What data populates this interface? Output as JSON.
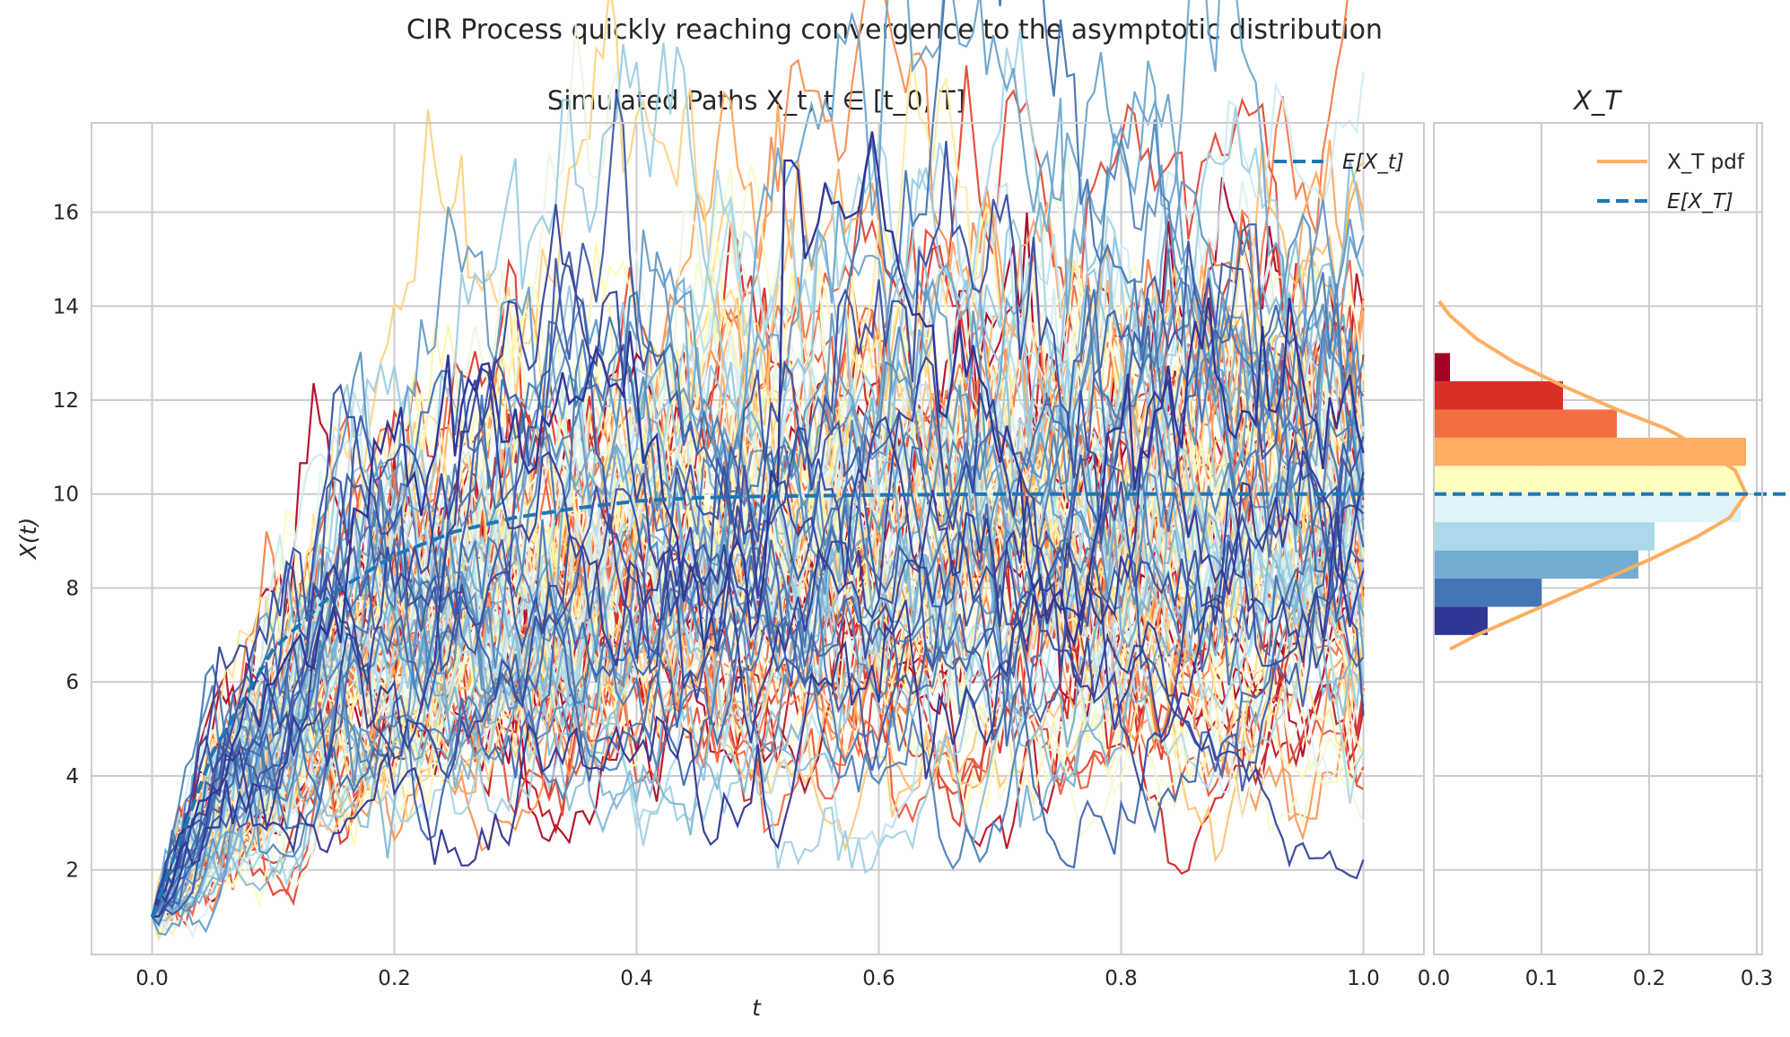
{
  "figure": {
    "suptitle": "CIR Process quickly reaching convergence to the asymptotic distribution"
  },
  "chart_data": [
    {
      "type": "line",
      "title": "Simulated Paths X_t, t ∈ [t_0, T]",
      "xlabel": "t",
      "ylabel": "X(t)",
      "xlim": [
        -0.05,
        1.05
      ],
      "ylim": [
        0.2,
        17.9
      ],
      "xticks": [
        "0.0",
        "0.2",
        "0.4",
        "0.6",
        "0.8",
        "1.0"
      ],
      "yticks": [
        "2",
        "4",
        "6",
        "8",
        "10",
        "12",
        "14",
        "16"
      ],
      "grid": true,
      "legend_position": "top-right",
      "process": {
        "x0": 1.0,
        "long_run_mean": 10.0,
        "t_start": 0.0,
        "t_end": 1.0
      },
      "series": [
        {
          "name": "E[X_t]",
          "style": "dashed",
          "color": "#1f77b4",
          "x": [
            0.0,
            0.05,
            0.1,
            0.15,
            0.2,
            0.25,
            0.3,
            0.35,
            0.4,
            0.45,
            0.5,
            0.6,
            0.7,
            0.8,
            0.9,
            1.0
          ],
          "values": [
            1.0,
            4.5,
            6.7,
            7.9,
            8.7,
            9.2,
            9.5,
            9.7,
            9.85,
            9.92,
            9.95,
            9.98,
            10.0,
            10.0,
            10.0,
            10.0
          ]
        }
      ],
      "annotations": "≈100 simulated sample paths starting at 1.0, coloured with the RdYlBu colormap",
      "notable_path_peak": {
        "x": 0.525,
        "y": 17.1
      }
    },
    {
      "type": "bar",
      "orientation": "horizontal",
      "title": "X_T",
      "xlim": [
        0.0,
        0.305
      ],
      "xticks": [
        "0.0",
        "0.1",
        "0.2",
        "0.3"
      ],
      "grid": true,
      "legend_position": "top-right",
      "bins": [
        {
          "y_from": 7.0,
          "y_to": 7.6,
          "density": 0.05,
          "color": "#313695"
        },
        {
          "y_from": 7.6,
          "y_to": 8.2,
          "density": 0.1,
          "color": "#4575b4"
        },
        {
          "y_from": 8.2,
          "y_to": 8.8,
          "density": 0.19,
          "color": "#74add1"
        },
        {
          "y_from": 8.8,
          "y_to": 9.4,
          "density": 0.205,
          "color": "#abd9e9"
        },
        {
          "y_from": 9.4,
          "y_to": 10.0,
          "density": 0.285,
          "color": "#e0f3f8"
        },
        {
          "y_from": 10.0,
          "y_to": 10.6,
          "density": 0.285,
          "color": "#ffffbf"
        },
        {
          "y_from": 10.6,
          "y_to": 11.2,
          "density": 0.29,
          "color": "#fdae61"
        },
        {
          "y_from": 11.2,
          "y_to": 11.8,
          "density": 0.17,
          "color": "#f46d43"
        },
        {
          "y_from": 11.8,
          "y_to": 12.4,
          "density": 0.12,
          "color": "#d73027"
        },
        {
          "y_from": 12.4,
          "y_to": 13.0,
          "density": 0.015,
          "color": "#a50026"
        }
      ],
      "series": [
        {
          "name": "X_T pdf",
          "color": "#fdae61",
          "points": [
            [
              0.015,
              6.7
            ],
            [
              0.04,
              7.0
            ],
            [
              0.09,
              7.5
            ],
            [
              0.15,
              8.1
            ],
            [
              0.2,
              8.6
            ],
            [
              0.245,
              9.1
            ],
            [
              0.275,
              9.5
            ],
            [
              0.29,
              10.0
            ],
            [
              0.28,
              10.5
            ],
            [
              0.255,
              10.9
            ],
            [
              0.215,
              11.4
            ],
            [
              0.17,
              11.8
            ],
            [
              0.12,
              12.3
            ],
            [
              0.075,
              12.8
            ],
            [
              0.04,
              13.3
            ],
            [
              0.015,
              13.8
            ],
            [
              0.005,
              14.1
            ]
          ]
        },
        {
          "name": "E[X_T]",
          "style": "dashed",
          "color": "#1f77b4",
          "value": 10.0
        }
      ]
    }
  ]
}
